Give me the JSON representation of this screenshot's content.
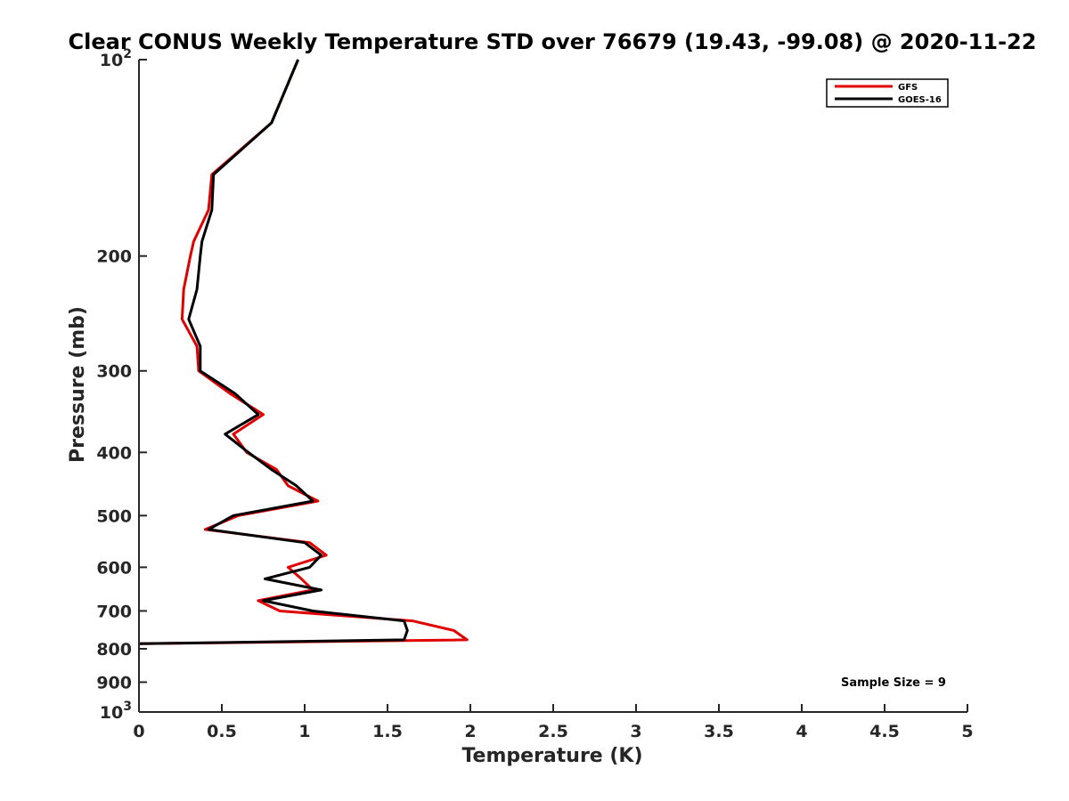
{
  "chart_data": {
    "type": "line",
    "title": "Clear CONUS Weekly Temperature STD over 76679 (19.43, -99.08) @ 2020-11-22",
    "xlabel": "Temperature (K)",
    "ylabel": "Pressure (mb)",
    "xlim": [
      0,
      5
    ],
    "ylim": [
      100,
      1000
    ],
    "y_scale": "log",
    "y_reversed": true,
    "grid": false,
    "x_ticks": [
      {
        "value": 0,
        "label": "0"
      },
      {
        "value": 0.5,
        "label": "0.5"
      },
      {
        "value": 1,
        "label": "1"
      },
      {
        "value": 1.5,
        "label": "1.5"
      },
      {
        "value": 2,
        "label": "2"
      },
      {
        "value": 2.5,
        "label": "2.5"
      },
      {
        "value": 3,
        "label": "3"
      },
      {
        "value": 3.5,
        "label": "3.5"
      },
      {
        "value": 4,
        "label": "4"
      },
      {
        "value": 4.5,
        "label": "4.5"
      },
      {
        "value": 5,
        "label": "5"
      }
    ],
    "y_ticks": [
      {
        "value": 100,
        "base": "10",
        "exp": "2"
      },
      {
        "value": 200,
        "label": "200"
      },
      {
        "value": 300,
        "label": "300"
      },
      {
        "value": 400,
        "label": "400"
      },
      {
        "value": 500,
        "label": "500"
      },
      {
        "value": 600,
        "label": "600"
      },
      {
        "value": 700,
        "label": "700"
      },
      {
        "value": 800,
        "label": "800"
      },
      {
        "value": 900,
        "label": "900"
      },
      {
        "value": 1000,
        "base": "10",
        "exp": "3"
      }
    ],
    "legend": "top-right",
    "series": [
      {
        "name": "GFS",
        "color": "#e00000",
        "points": [
          [
            0.96,
            100
          ],
          [
            0.8,
            125
          ],
          [
            0.44,
            150
          ],
          [
            0.42,
            170
          ],
          [
            0.33,
            190
          ],
          [
            0.31,
            200
          ],
          [
            0.27,
            225
          ],
          [
            0.26,
            250
          ],
          [
            0.35,
            275
          ],
          [
            0.36,
            300
          ],
          [
            0.55,
            325
          ],
          [
            0.75,
            350
          ],
          [
            0.57,
            375
          ],
          [
            0.65,
            400
          ],
          [
            0.83,
            425
          ],
          [
            0.9,
            450
          ],
          [
            1.08,
            475
          ],
          [
            0.6,
            500
          ],
          [
            0.4,
            525
          ],
          [
            1.03,
            550
          ],
          [
            1.13,
            575
          ],
          [
            0.9,
            600
          ],
          [
            0.98,
            625
          ],
          [
            1.05,
            650
          ],
          [
            0.72,
            675
          ],
          [
            0.85,
            700
          ],
          [
            1.65,
            725
          ],
          [
            1.9,
            750
          ],
          [
            1.98,
            775
          ],
          [
            0,
            786
          ]
        ]
      },
      {
        "name": "GOES-16",
        "color": "#000000",
        "points": [
          [
            0.96,
            100
          ],
          [
            0.8,
            125
          ],
          [
            0.45,
            150
          ],
          [
            0.44,
            170
          ],
          [
            0.38,
            190
          ],
          [
            0.37,
            200
          ],
          [
            0.35,
            225
          ],
          [
            0.3,
            250
          ],
          [
            0.37,
            275
          ],
          [
            0.37,
            300
          ],
          [
            0.58,
            325
          ],
          [
            0.72,
            350
          ],
          [
            0.52,
            375
          ],
          [
            0.66,
            400
          ],
          [
            0.8,
            425
          ],
          [
            0.95,
            450
          ],
          [
            1.05,
            475
          ],
          [
            0.57,
            500
          ],
          [
            0.42,
            525
          ],
          [
            1.0,
            550
          ],
          [
            1.1,
            575
          ],
          [
            1.03,
            600
          ],
          [
            0.76,
            625
          ],
          [
            1.1,
            650
          ],
          [
            0.75,
            675
          ],
          [
            1.05,
            700
          ],
          [
            1.6,
            725
          ],
          [
            1.62,
            750
          ],
          [
            1.6,
            775
          ],
          [
            0,
            786
          ]
        ]
      }
    ],
    "annotation": "Sample Size = 9"
  }
}
